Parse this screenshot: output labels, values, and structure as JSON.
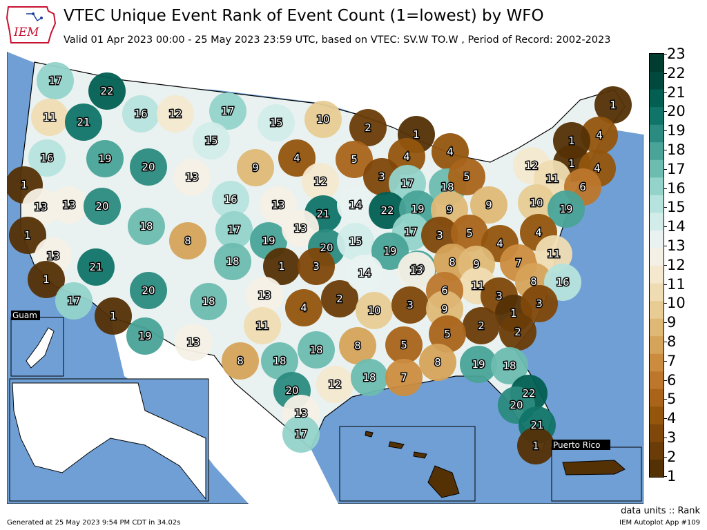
{
  "header": {
    "title": "VTEC Unique Event Rank of Event Count (1=lowest) by WFO",
    "subtitle": "Valid 01 Apr 2023 00:00 - 25 May 2023 23:59 UTC, based on VTEC: SV.W TO.W  , Period of Record: 2002-2023",
    "logo_text": "IEM"
  },
  "colors": {
    "ocean": "#6f9fd4",
    "land_outside": "#ffffff",
    "scale": [
      "#543005",
      "#6a3c07",
      "#7f4709",
      "#94550d",
      "#a9641a",
      "#bd772c",
      "#cc8c3f",
      "#d6a35a",
      "#dfb876",
      "#e8cc93",
      "#efdcb2",
      "#f4e8cf",
      "#f5f0e6",
      "#e9f2f1",
      "#d1ece9",
      "#b6e3dd",
      "#93d3ca",
      "#6dbcb0",
      "#49a397",
      "#2b8b80",
      "#117468",
      "#025f52",
      "#01493c",
      "#003c30"
    ]
  },
  "colorbar": {
    "min": 1,
    "max": 23,
    "labels": [
      "23",
      "22",
      "21",
      "20",
      "19",
      "18",
      "17",
      "16",
      "15",
      "14",
      "13",
      "12",
      "11",
      "10",
      "9",
      "8",
      "7",
      "6",
      "5",
      "4",
      "3",
      "2",
      "1"
    ]
  },
  "insets": {
    "guam": "Guam",
    "puerto_rico": "Puerto Rico"
  },
  "wfo_values": [
    {
      "id": "SEW",
      "v": 17
    },
    {
      "id": "OTX_W",
      "v": 22
    },
    {
      "id": "PQR",
      "v": 11
    },
    {
      "id": "PDT",
      "v": 21
    },
    {
      "id": "MSO",
      "v": 16
    },
    {
      "id": "TFX",
      "v": 12
    },
    {
      "id": "GGW",
      "v": 17
    },
    {
      "id": "BIS",
      "v": 15
    },
    {
      "id": "FGF",
      "v": 10
    },
    {
      "id": "DLH",
      "v": 2
    },
    {
      "id": "MQT",
      "v": 1
    },
    {
      "id": "CAR",
      "v": 1
    },
    {
      "id": "MFR",
      "v": 16
    },
    {
      "id": "BOI",
      "v": 19
    },
    {
      "id": "PIH",
      "v": 20
    },
    {
      "id": "BYZ",
      "v": 15
    },
    {
      "id": "UNR",
      "v": 9
    },
    {
      "id": "ABR",
      "v": 4
    },
    {
      "id": "MPX",
      "v": 5
    },
    {
      "id": "GRB",
      "v": 4
    },
    {
      "id": "APX",
      "v": 4
    },
    {
      "id": "GYX",
      "v": 4
    },
    {
      "id": "BTV",
      "v": 1
    },
    {
      "id": "ALY",
      "v": 1
    },
    {
      "id": "BOX",
      "v": 4
    },
    {
      "id": "EKA",
      "v": 1
    },
    {
      "id": "RIW",
      "v": 13
    },
    {
      "id": "FSD",
      "v": 12
    },
    {
      "id": "ARX",
      "v": 3
    },
    {
      "id": "MKX",
      "v": 17
    },
    {
      "id": "GRR",
      "v": 18
    },
    {
      "id": "DTX",
      "v": 5
    },
    {
      "id": "BUF",
      "v": 12
    },
    {
      "id": "BGM",
      "v": 11
    },
    {
      "id": "OKX",
      "v": 6
    },
    {
      "id": "STO",
      "v": 13
    },
    {
      "id": "LKN",
      "v": 13
    },
    {
      "id": "SLC_N",
      "v": 20
    },
    {
      "id": "CYS",
      "v": 16
    },
    {
      "id": "LBF",
      "v": 13
    },
    {
      "id": "OAX",
      "v": 21
    },
    {
      "id": "DMX",
      "v": 14
    },
    {
      "id": "DVN",
      "v": 22
    },
    {
      "id": "LOT",
      "v": 19
    },
    {
      "id": "CLE",
      "v": 9
    },
    {
      "id": "PBZ",
      "v": 9
    },
    {
      "id": "CTP",
      "v": 10
    },
    {
      "id": "PHI",
      "v": 19
    },
    {
      "id": "REV",
      "v": 1
    },
    {
      "id": "SLC",
      "v": 18
    },
    {
      "id": "GJT",
      "v": 8
    },
    {
      "id": "BOU",
      "v": 17
    },
    {
      "id": "GLD",
      "v": 19
    },
    {
      "id": "GID",
      "v": 13
    },
    {
      "id": "TOP",
      "v": 20
    },
    {
      "id": "EAX",
      "v": 15
    },
    {
      "id": "ILX",
      "v": 17
    },
    {
      "id": "IND",
      "v": 3
    },
    {
      "id": "ILN",
      "v": 5
    },
    {
      "id": "RLX",
      "v": 4
    },
    {
      "id": "LWX",
      "v": 4
    },
    {
      "id": "HNX",
      "v": 13
    },
    {
      "id": "VEF",
      "v": 21
    },
    {
      "id": "PUB",
      "v": 18
    },
    {
      "id": "DDC",
      "v": 1
    },
    {
      "id": "ICT",
      "v": 3
    },
    {
      "id": "SGF",
      "v": 19
    },
    {
      "id": "LSX",
      "v": 19
    },
    {
      "id": "IWX",
      "v": 8
    },
    {
      "id": "JKL",
      "v": 9
    },
    {
      "id": "RNK",
      "v": 7
    },
    {
      "id": "AKQ",
      "v": 11
    },
    {
      "id": "LOX",
      "v": 1
    },
    {
      "id": "SGX",
      "v": 17
    },
    {
      "id": "PSR",
      "v": 1
    },
    {
      "id": "FGZ",
      "v": 20
    },
    {
      "id": "ABQ",
      "v": 18
    },
    {
      "id": "AMA",
      "v": 13
    },
    {
      "id": "OUN",
      "v": 4
    },
    {
      "id": "TSA",
      "v": 2
    },
    {
      "id": "PAH",
      "v": 14
    },
    {
      "id": "LMK",
      "v": 13
    },
    {
      "id": "MRX",
      "v": 11
    },
    {
      "id": "RAH",
      "v": 8
    },
    {
      "id": "MHX",
      "v": 16
    },
    {
      "id": "TWC",
      "v": 19
    },
    {
      "id": "EPZ",
      "v": 13
    },
    {
      "id": "LUB",
      "v": 11
    },
    {
      "id": "LZK",
      "v": 10
    },
    {
      "id": "MEG",
      "v": 3
    },
    {
      "id": "OHX",
      "v": 6
    },
    {
      "id": "GSP",
      "v": 3
    },
    {
      "id": "CAE",
      "v": 1
    },
    {
      "id": "ILM",
      "v": 3
    },
    {
      "id": "HUN",
      "v": 9
    },
    {
      "id": "FFC",
      "v": 2
    },
    {
      "id": "CHS",
      "v": 2
    },
    {
      "id": "MAF",
      "v": 8
    },
    {
      "id": "SJT",
      "v": 18
    },
    {
      "id": "FWD",
      "v": 18
    },
    {
      "id": "SHV",
      "v": 8
    },
    {
      "id": "JAN",
      "v": 5
    },
    {
      "id": "BMX",
      "v": 5
    },
    {
      "id": "EWX",
      "v": 20
    },
    {
      "id": "HGX",
      "v": 12
    },
    {
      "id": "LCH",
      "v": 18
    },
    {
      "id": "LIX",
      "v": 7
    },
    {
      "id": "MOB",
      "v": 8
    },
    {
      "id": "TAE",
      "v": 19
    },
    {
      "id": "JAX",
      "v": 18
    },
    {
      "id": "MLB",
      "v": 22
    },
    {
      "id": "TBW",
      "v": 20
    },
    {
      "id": "MFL",
      "v": 21
    },
    {
      "id": "KEY",
      "v": 1
    },
    {
      "id": "CRP",
      "v": 13
    },
    {
      "id": "BRO",
      "v": 17
    },
    {
      "id": "HFO",
      "v": 1
    },
    {
      "id": "SJU",
      "v": 1
    }
  ],
  "footer": {
    "units": "data units :: Rank",
    "generated": "Generated at 25 May 2023 9:54 PM CDT in 34.02s",
    "app": "IEM Autoplot App #109"
  }
}
